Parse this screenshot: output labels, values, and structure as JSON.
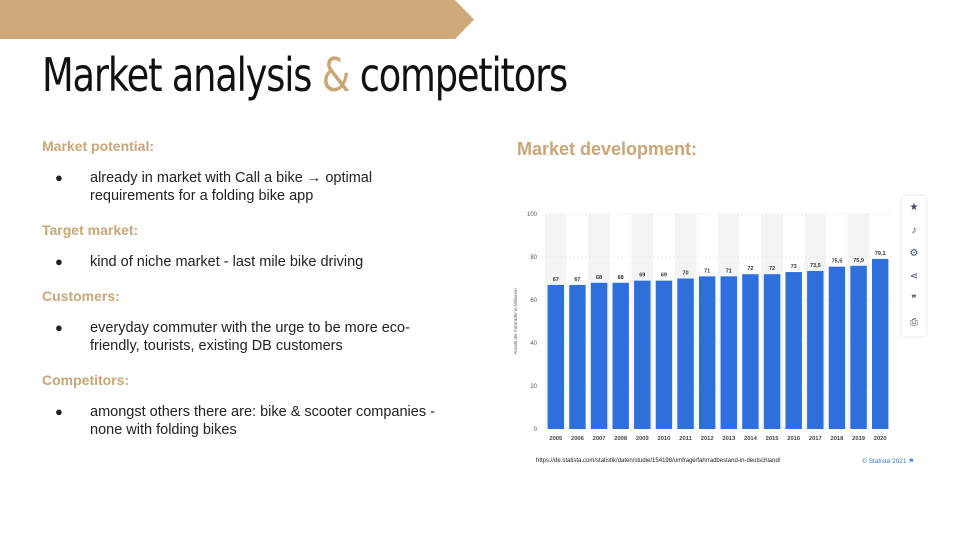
{
  "slide": {
    "title_part1": "Market analysis ",
    "title_amp": "&",
    "title_part2": " competitors",
    "banner_color": "#d0a87a",
    "accent_color": "#c9a677"
  },
  "left_column": {
    "sections": [
      {
        "heading": "Market potential:",
        "bullet": "already in market with Call a bike → optimal requirements for a folding bike app"
      },
      {
        "heading": "Target market:",
        "bullet": "kind of niche market - last mile bike driving"
      },
      {
        "heading": "Customers:",
        "bullet": "everyday commuter with the urge to be more eco-friendly, tourists, existing DB customers"
      },
      {
        "heading": "Competitors:",
        "bullet": "amongst others there are: bike & scooter companies - none with folding bikes"
      }
    ],
    "bullet_glyph": "●"
  },
  "right_column": {
    "heading": "Market development:",
    "source_url": "https://de.statista.com/statistik/daten/studie/154198/umfrage/fahrradbestand-in-deutschland/",
    "brand": "© Statista 2021 ⚑",
    "toolbar_icons": [
      "star-icon",
      "bell-icon",
      "gear-icon",
      "share-icon",
      "quote-icon",
      "print-icon"
    ]
  },
  "chart_data": {
    "type": "bar",
    "categories": [
      "2005",
      "2006",
      "2007",
      "2008",
      "2009",
      "2010",
      "2011",
      "2012",
      "2013",
      "2014",
      "2015",
      "2016",
      "2017",
      "2018",
      "2019",
      "2020"
    ],
    "values": [
      67,
      67,
      68,
      68,
      69,
      69,
      70,
      71,
      71,
      72,
      72,
      73,
      73.5,
      75.5,
      75.9,
      79.1
    ],
    "value_labels": [
      "67",
      "67",
      "68",
      "68",
      "69",
      "69",
      "70",
      "71",
      "71",
      "72",
      "72",
      "73",
      "73,5",
      "75,5",
      "75,9",
      "79,1"
    ],
    "ylabel": "Anzahl der Fahrräder in Millionen",
    "yticks": [
      0,
      20,
      40,
      60,
      80,
      100
    ],
    "ylim": [
      0,
      100
    ],
    "bar_color": "#2f6fdc",
    "grid": true
  }
}
